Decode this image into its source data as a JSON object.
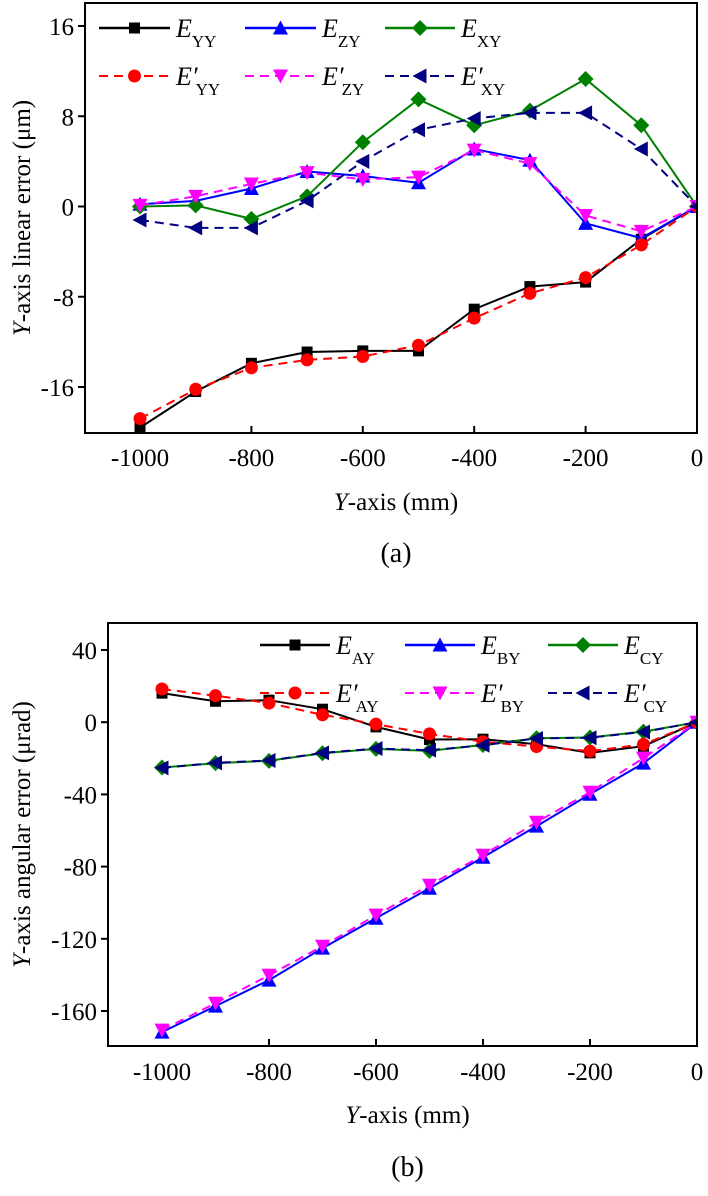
{
  "chart_data": [
    {
      "type": "line",
      "panel_label": "(a)",
      "xlabel_italic": "Y",
      "xlabel_rest": "-axis (mm)",
      "ylabel_italic": "Y",
      "ylabel_rest": "-axis linear error (μm)",
      "xlim": [
        -1100,
        0
      ],
      "ylim": [
        -20,
        18.5
      ],
      "xticks": [
        -1000,
        -800,
        -600,
        -400,
        -200,
        0
      ],
      "xtick_labels": [
        "-1000",
        "-800",
        "-600",
        "-400",
        "-200",
        "0"
      ],
      "yticks": [
        16,
        8,
        0,
        -8,
        -16
      ],
      "ytick_labels": [
        "16",
        "8",
        "0",
        "-8",
        "-16"
      ],
      "grid": false,
      "legend_position": "top-left",
      "x": [
        -1000,
        -900,
        -800,
        -700,
        -600,
        -500,
        -400,
        -300,
        -200,
        -100,
        0
      ],
      "series": [
        {
          "name": "E_YY",
          "label_main": "E",
          "label_prime": "",
          "label_sub": "YY",
          "color": "#000000",
          "dashed": false,
          "marker": "square",
          "values": [
            -19.6,
            -16.4,
            -13.9,
            -12.9,
            -12.8,
            -12.8,
            -9.1,
            -7.1,
            -6.7,
            -2.9,
            0
          ]
        },
        {
          "name": "E_ZY",
          "label_main": "E",
          "label_prime": "",
          "label_sub": "ZY",
          "color": "#0000ff",
          "dashed": false,
          "marker": "triangle-up",
          "values": [
            0.2,
            0.5,
            1.6,
            3.1,
            2.7,
            2.1,
            5.1,
            4.1,
            -1.5,
            -2.8,
            0
          ]
        },
        {
          "name": "E_XY",
          "label_main": "E",
          "label_prime": "",
          "label_sub": "XY",
          "color": "#008000",
          "dashed": false,
          "marker": "diamond",
          "values": [
            0.0,
            0.1,
            -1.1,
            0.9,
            5.7,
            9.5,
            7.2,
            8.5,
            11.3,
            7.2,
            0
          ]
        },
        {
          "name": "E'_YY",
          "label_main": "E",
          "label_prime": "′",
          "label_sub": "YY",
          "color": "#ff0000",
          "dashed": true,
          "marker": "circle",
          "values": [
            -18.8,
            -16.2,
            -14.3,
            -13.6,
            -13.3,
            -12.3,
            -9.9,
            -7.7,
            -6.3,
            -3.4,
            0
          ]
        },
        {
          "name": "E'_ZY",
          "label_main": "E",
          "label_prime": "′",
          "label_sub": "ZY",
          "color": "#ff00ff",
          "dashed": true,
          "marker": "triangle-down",
          "values": [
            0.1,
            0.9,
            2.0,
            3.0,
            2.4,
            2.6,
            5.0,
            3.8,
            -0.8,
            -2.2,
            0
          ]
        },
        {
          "name": "E'_XY",
          "label_main": "E",
          "label_prime": "′",
          "label_sub": "XY",
          "color": "#000080",
          "dashed": true,
          "marker": "triangle-left",
          "values": [
            -1.2,
            -1.9,
            -1.9,
            0.5,
            4.0,
            6.8,
            7.8,
            8.3,
            8.3,
            5.1,
            0
          ]
        }
      ]
    },
    {
      "type": "line",
      "panel_label": "(b)",
      "xlabel_italic": "Y",
      "xlabel_rest": "-axis (mm)",
      "ylabel_italic": "Y",
      "ylabel_rest": "-axis angular error (μrad)",
      "xlim": [
        -1100,
        0
      ],
      "ylim": [
        -180,
        55
      ],
      "xticks": [
        -1000,
        -800,
        -600,
        -400,
        -200,
        0
      ],
      "xtick_labels": [
        "-1000",
        "-800",
        "-600",
        "-400",
        "-200",
        "0"
      ],
      "yticks": [
        40,
        0,
        -40,
        -80,
        -120,
        -160
      ],
      "ytick_labels": [
        "40",
        "0",
        "-40",
        "-80",
        "-120",
        "-160"
      ],
      "grid": false,
      "legend_position": "top-right",
      "x": [
        -1000,
        -900,
        -800,
        -700,
        -600,
        -500,
        -400,
        -300,
        -200,
        -100,
        0
      ],
      "series": [
        {
          "name": "E_AY",
          "label_main": "E",
          "label_prime": "",
          "label_sub": "AY",
          "color": "#000000",
          "dashed": false,
          "marker": "square",
          "values": [
            16.1,
            11.6,
            12.2,
            7.2,
            -2.6,
            -9.6,
            -9.4,
            -12.2,
            -17.0,
            -13.3,
            0
          ]
        },
        {
          "name": "E_BY",
          "label_main": "E",
          "label_prime": "",
          "label_sub": "BY",
          "color": "#0000ff",
          "dashed": false,
          "marker": "triangle-up",
          "values": [
            -171.7,
            -157.3,
            -142.9,
            -125.2,
            -108.6,
            -92.0,
            -74.8,
            -57.6,
            -39.9,
            -22.7,
            0
          ]
        },
        {
          "name": "E_CY",
          "label_main": "E",
          "label_prime": "",
          "label_sub": "CY",
          "color": "#008000",
          "dashed": false,
          "marker": "diamond",
          "values": [
            -25.1,
            -22.7,
            -21.4,
            -17.2,
            -14.8,
            -15.9,
            -12.6,
            -8.9,
            -8.5,
            -5.2,
            0
          ]
        },
        {
          "name": "E'_AY",
          "label_main": "E",
          "label_prime": "′",
          "label_sub": "AY",
          "color": "#ff0000",
          "dashed": true,
          "marker": "circle",
          "values": [
            18.4,
            14.7,
            10.6,
            4.1,
            -1.1,
            -6.5,
            -10.8,
            -13.5,
            -16.0,
            -12.3,
            0
          ]
        },
        {
          "name": "E'_BY",
          "label_main": "E",
          "label_prime": "′",
          "label_sub": "BY",
          "color": "#ff00ff",
          "dashed": true,
          "marker": "triangle-down",
          "values": [
            -170.6,
            -155.7,
            -140.2,
            -124.1,
            -106.9,
            -90.3,
            -73.7,
            -55.4,
            -38.8,
            -19.9,
            0
          ]
        },
        {
          "name": "E'_CY",
          "label_main": "E",
          "label_prime": "′",
          "label_sub": "CY",
          "color": "#000080",
          "dashed": true,
          "marker": "triangle-left",
          "values": [
            -25.3,
            -22.5,
            -21.2,
            -17.0,
            -14.6,
            -15.5,
            -12.8,
            -9.0,
            -8.6,
            -5.4,
            0
          ]
        }
      ]
    }
  ]
}
